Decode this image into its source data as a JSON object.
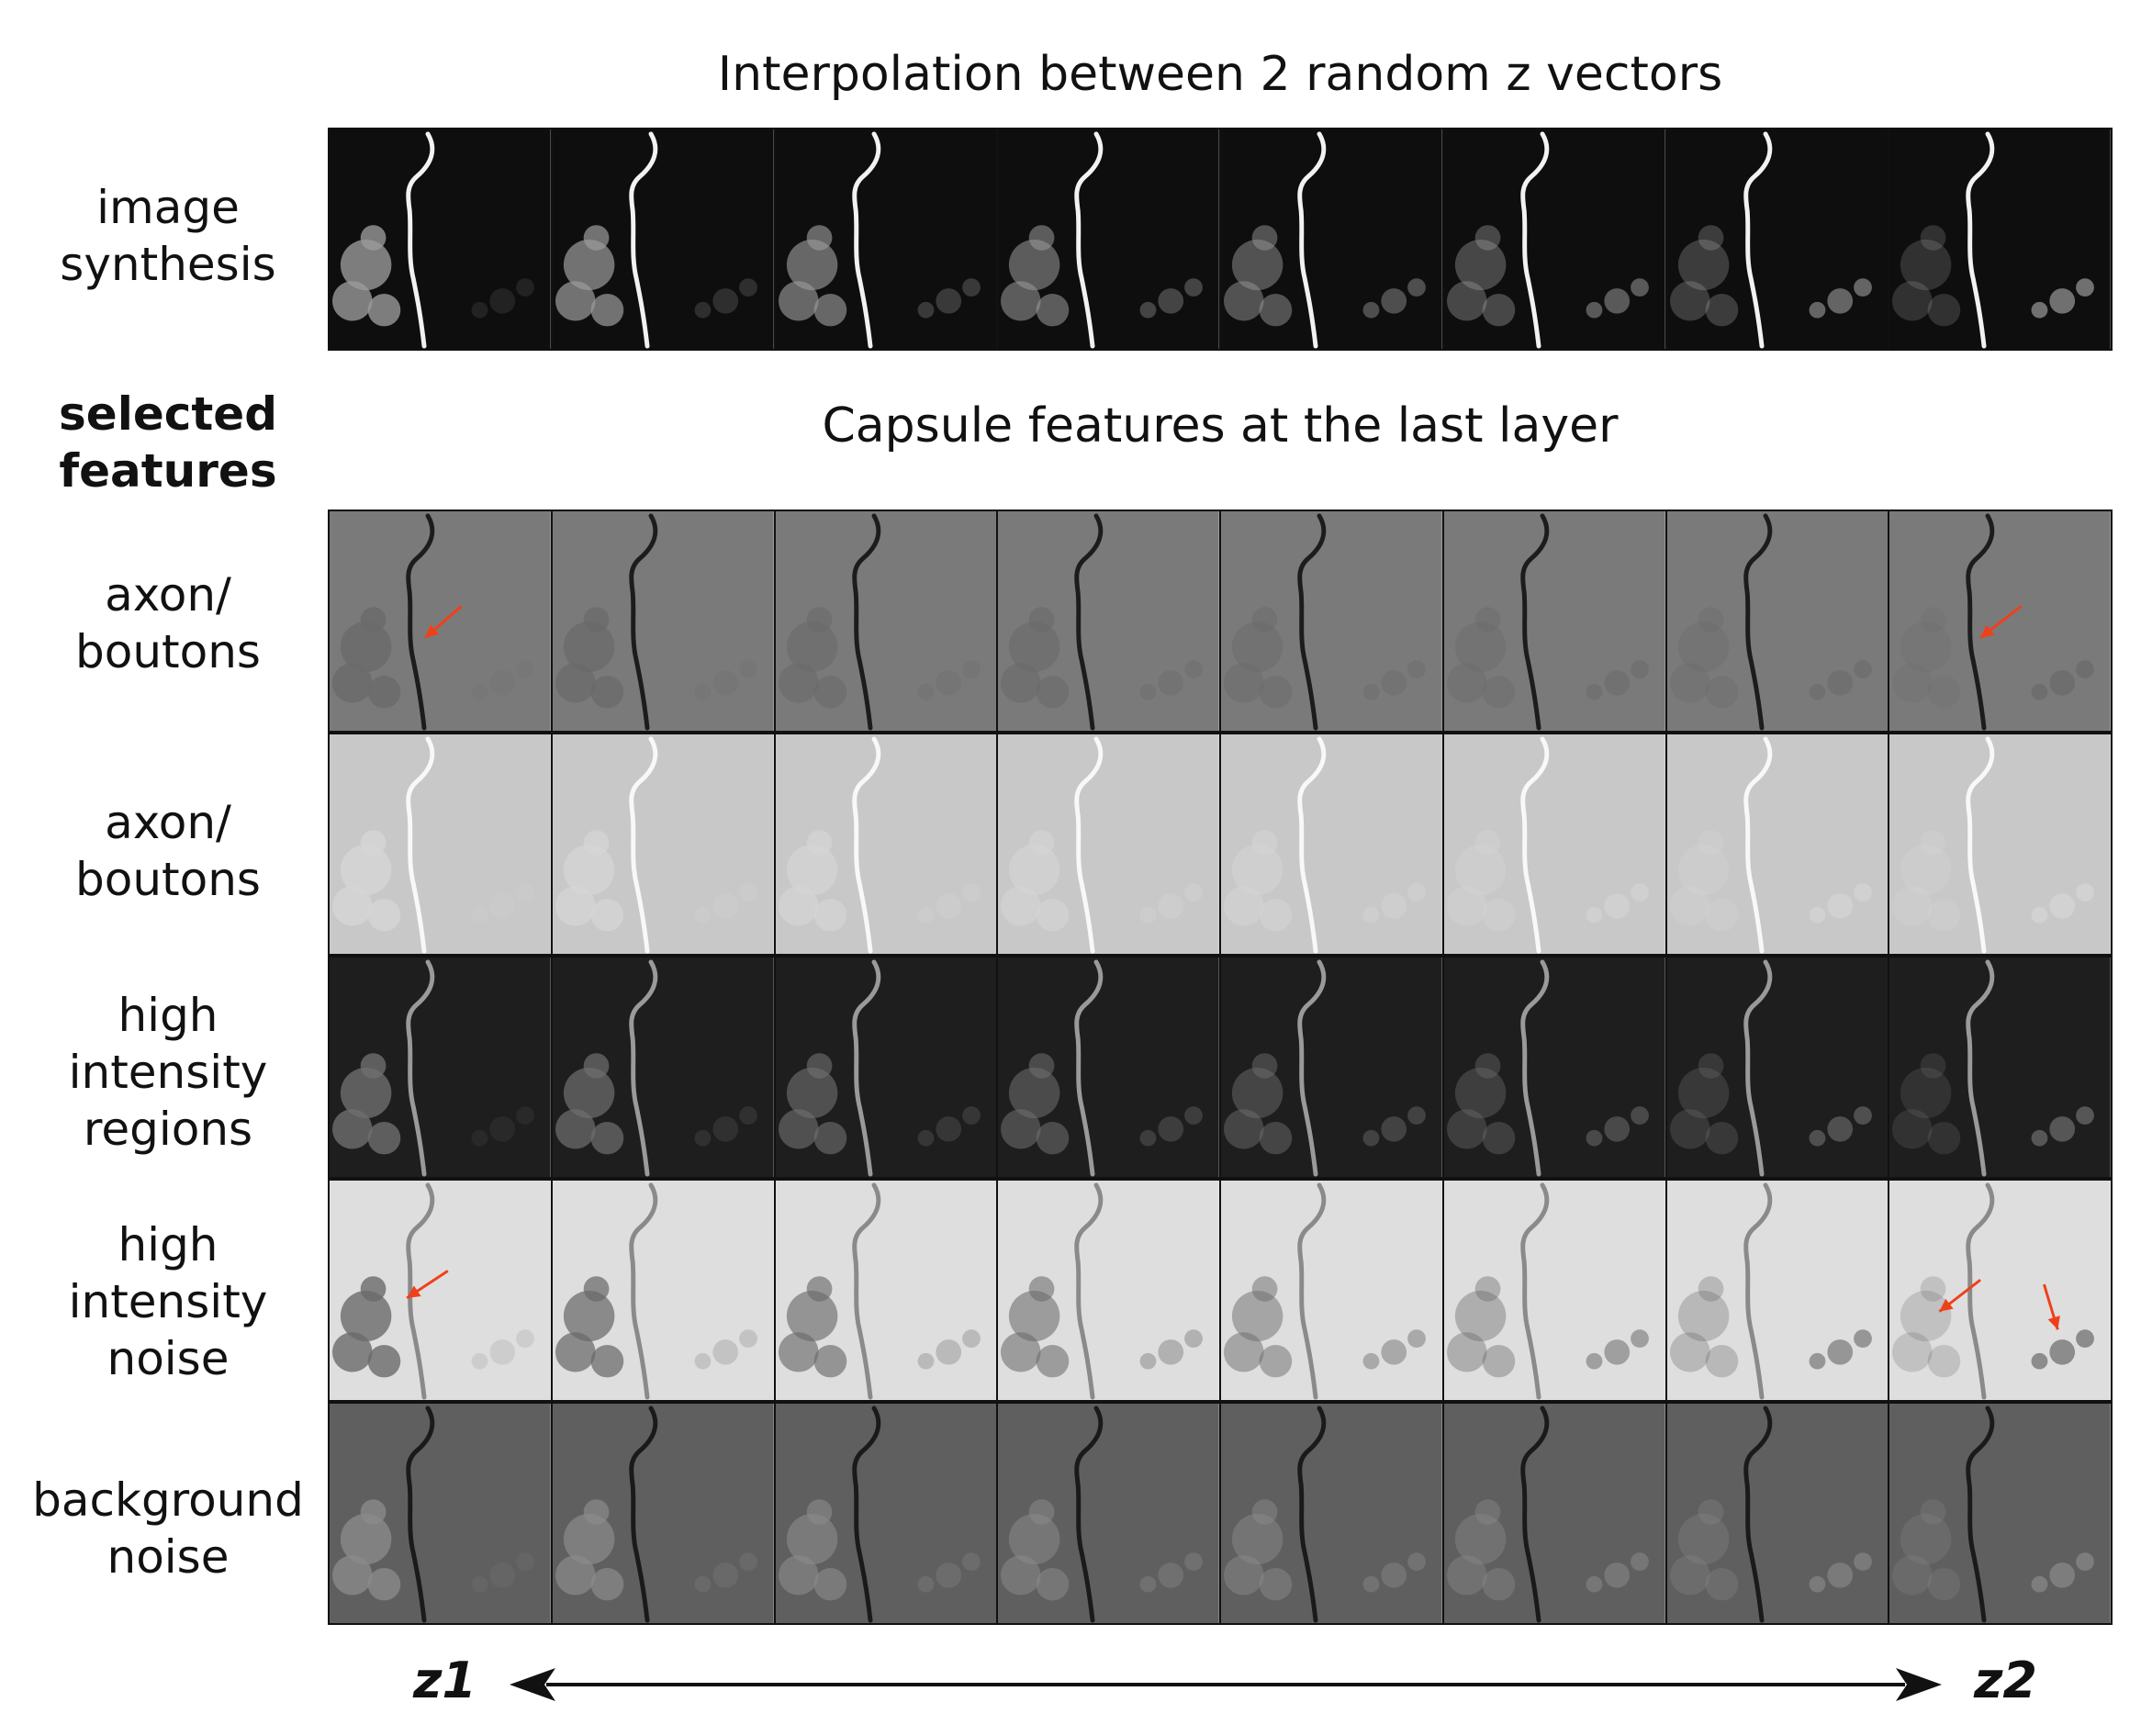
{
  "titles": {
    "top": "Interpolation between 2 random z vectors",
    "middle": "Capsule features at the last layer"
  },
  "labels": {
    "image_synthesis": "image\nsynthesis",
    "selected_features": "selected\nfeatures",
    "axon_boutons_1": "axon/\nboutons",
    "axon_boutons_2": "axon/\nboutons",
    "high_intensity_regions": "high\nintensity\nregions",
    "high_intensity_noise": "high\nintensity\nnoise",
    "background_noise": "background\nnoise"
  },
  "interpolation": {
    "start_label": "z1",
    "end_label": "z2",
    "steps": 8
  },
  "rows": [
    {
      "key": "synthesis",
      "bg": "#0e0e0e",
      "axon": "#f2f2f2",
      "blob": "#9a9a9a"
    },
    {
      "key": "axon1",
      "bg": "#7a7a7a",
      "axon": "#1c1c1c",
      "blob": "#6a6a6a"
    },
    {
      "key": "axon2",
      "bg": "#c8c8c8",
      "axon": "#f8f8f8",
      "blob": "#d6d6d6"
    },
    {
      "key": "regions",
      "bg": "#1e1e1e",
      "axon": "#9a9a9a",
      "blob": "#6e6e6e"
    },
    {
      "key": "noise",
      "bg": "#dedede",
      "axon": "#8a8a8a",
      "blob": "#6a6a6a"
    },
    {
      "key": "background",
      "bg": "#5f5f5f",
      "axon": "#1a1a1a",
      "blob": "#8a8a8a"
    }
  ],
  "colors": {
    "arrow_accent": "#f0401a"
  }
}
